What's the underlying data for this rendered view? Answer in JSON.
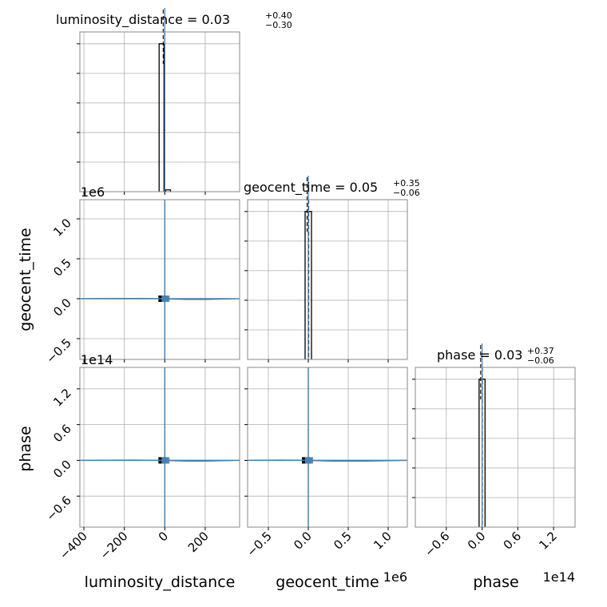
{
  "chart_data": {
    "type": "corner",
    "parameters": [
      "luminosity_distance",
      "geocent_time",
      "phase"
    ],
    "axis_labels": {
      "x": [
        "luminosity_distance",
        "geocent_time",
        "phase"
      ],
      "y": [
        "geocent_time",
        "phase"
      ]
    },
    "titles": [
      {
        "param": "luminosity_distance",
        "label": "luminosity_distance = 0.03",
        "upper": "+0.40",
        "lower": "−0.30"
      },
      {
        "param": "geocent_time",
        "label": "geocent_time = 0.05",
        "upper": "+0.35",
        "lower": "−0.06"
      },
      {
        "param": "phase",
        "label": "phase = 0.03",
        "upper": "+0.37",
        "lower": "−0.06"
      }
    ],
    "offsets": {
      "geocent_time": "1e6",
      "phase": "1e14"
    },
    "ranges": {
      "luminosity_distance": [
        -420,
        370
      ],
      "geocent_time": [
        -0.76,
        1.24
      ],
      "phase": [
        -1.12,
        1.56
      ]
    },
    "ticks": {
      "luminosity_distance": {
        "values": [
          -400,
          -200,
          0,
          200
        ],
        "labels": [
          "−400",
          "−200",
          "0",
          "200"
        ]
      },
      "geocent_time": {
        "values": [
          -0.5,
          0.0,
          0.5,
          1.0
        ],
        "labels": [
          "−0.5",
          "0.0",
          "0.5",
          "1.0"
        ]
      },
      "phase": {
        "values": [
          -0.6,
          0.0,
          0.6,
          1.2
        ],
        "labels": [
          "−0.6",
          "0.0",
          "0.6",
          "1.2"
        ]
      }
    },
    "phase_y_ticks": {
      "values": [
        -0.6,
        0.0,
        0.6,
        1.2
      ],
      "labels": [
        "−0.6",
        "0.0",
        "0.6",
        "1.2"
      ]
    },
    "truths": {
      "luminosity_distance": 0,
      "geocent_time": 0,
      "phase": 0
    },
    "medians": {
      "luminosity_distance": 0.03,
      "geocent_time": 0.05,
      "phase": 0.03
    },
    "histograms": {
      "luminosity_distance": [
        {
          "x0": -28,
          "x1": -4,
          "h": 1.0
        },
        {
          "x0": 4,
          "x1": 28,
          "h": 0.012
        }
      ],
      "geocent_time": [
        {
          "x0": -0.04,
          "x1": 0.04,
          "h": 1.0
        }
      ],
      "phase": [
        {
          "x0": -0.05,
          "x1": 0.05,
          "h": 1.0
        }
      ]
    },
    "grid": true,
    "colors": {
      "truth": "#4682b4",
      "hist": "#000000",
      "quantile": "#000000",
      "grid": "#b0b0b0"
    }
  }
}
